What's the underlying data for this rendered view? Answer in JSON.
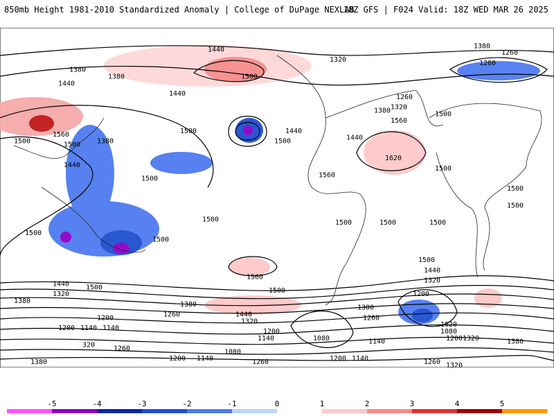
{
  "header": {
    "left_title": "850mb Height 1981-2010 Standardized Anomaly | College of DuPage NEXLAB",
    "right_title": "18Z GFS | F024 Valid: 18Z WED MAR 26 2025"
  },
  "contour_labels": [
    {
      "text": "1440",
      "fx": 0.39,
      "fy": 0.07
    },
    {
      "text": "1380",
      "fx": 0.87,
      "fy": 0.06
    },
    {
      "text": "1260",
      "fx": 0.92,
      "fy": 0.08
    },
    {
      "text": "1200",
      "fx": 0.88,
      "fy": 0.11
    },
    {
      "text": "1320",
      "fx": 0.61,
      "fy": 0.1
    },
    {
      "text": "1380",
      "fx": 0.14,
      "fy": 0.13
    },
    {
      "text": "1380",
      "fx": 0.21,
      "fy": 0.15
    },
    {
      "text": "1440",
      "fx": 0.12,
      "fy": 0.17
    },
    {
      "text": "1500",
      "fx": 0.45,
      "fy": 0.15
    },
    {
      "text": "1440",
      "fx": 0.32,
      "fy": 0.2
    },
    {
      "text": "1260",
      "fx": 0.73,
      "fy": 0.21
    },
    {
      "text": "1380",
      "fx": 0.69,
      "fy": 0.25
    },
    {
      "text": "1320",
      "fx": 0.72,
      "fy": 0.24
    },
    {
      "text": "1500",
      "fx": 0.8,
      "fy": 0.26
    },
    {
      "text": "1560",
      "fx": 0.72,
      "fy": 0.28
    },
    {
      "text": "1500",
      "fx": 0.34,
      "fy": 0.31
    },
    {
      "text": "1440",
      "fx": 0.53,
      "fy": 0.31
    },
    {
      "text": "1500",
      "fx": 0.51,
      "fy": 0.34
    },
    {
      "text": "1440",
      "fx": 0.64,
      "fy": 0.33
    },
    {
      "text": "1560",
      "fx": 0.11,
      "fy": 0.32
    },
    {
      "text": "1500",
      "fx": 0.04,
      "fy": 0.34
    },
    {
      "text": "1500",
      "fx": 0.13,
      "fy": 0.35
    },
    {
      "text": "1380",
      "fx": 0.19,
      "fy": 0.34
    },
    {
      "text": "1440",
      "fx": 0.13,
      "fy": 0.41
    },
    {
      "text": "1620",
      "fx": 0.71,
      "fy": 0.39
    },
    {
      "text": "1500",
      "fx": 0.8,
      "fy": 0.42
    },
    {
      "text": "1500",
      "fx": 0.27,
      "fy": 0.45
    },
    {
      "text": "1560",
      "fx": 0.59,
      "fy": 0.44
    },
    {
      "text": "1500",
      "fx": 0.93,
      "fy": 0.48
    },
    {
      "text": "1500",
      "fx": 0.93,
      "fy": 0.53
    },
    {
      "text": "1500",
      "fx": 0.38,
      "fy": 0.57
    },
    {
      "text": "1500",
      "fx": 0.62,
      "fy": 0.58
    },
    {
      "text": "1500",
      "fx": 0.7,
      "fy": 0.58
    },
    {
      "text": "1500",
      "fx": 0.79,
      "fy": 0.58
    },
    {
      "text": "1500",
      "fx": 0.06,
      "fy": 0.61
    },
    {
      "text": "1500",
      "fx": 0.29,
      "fy": 0.63
    },
    {
      "text": "1500",
      "fx": 0.77,
      "fy": 0.69
    },
    {
      "text": "1440",
      "fx": 0.78,
      "fy": 0.72
    },
    {
      "text": "1560",
      "fx": 0.46,
      "fy": 0.74
    },
    {
      "text": "1320",
      "fx": 0.78,
      "fy": 0.75
    },
    {
      "text": "1440",
      "fx": 0.11,
      "fy": 0.76
    },
    {
      "text": "1500",
      "fx": 0.17,
      "fy": 0.77
    },
    {
      "text": "1500",
      "fx": 0.5,
      "fy": 0.78
    },
    {
      "text": "1320",
      "fx": 0.11,
      "fy": 0.79
    },
    {
      "text": "1380",
      "fx": 0.04,
      "fy": 0.81
    },
    {
      "text": "1200",
      "fx": 0.76,
      "fy": 0.79
    },
    {
      "text": "1380",
      "fx": 0.34,
      "fy": 0.82
    },
    {
      "text": "1380",
      "fx": 0.66,
      "fy": 0.83
    },
    {
      "text": "1260",
      "fx": 0.31,
      "fy": 0.85
    },
    {
      "text": "1440",
      "fx": 0.44,
      "fy": 0.85
    },
    {
      "text": "1200",
      "fx": 0.19,
      "fy": 0.86
    },
    {
      "text": "1260",
      "fx": 0.67,
      "fy": 0.86
    },
    {
      "text": "1320",
      "fx": 0.45,
      "fy": 0.87
    },
    {
      "text": "1020",
      "fx": 0.81,
      "fy": 0.88
    },
    {
      "text": "1140",
      "fx": 0.16,
      "fy": 0.89
    },
    {
      "text": "1140",
      "fx": 0.2,
      "fy": 0.89
    },
    {
      "text": "1200",
      "fx": 0.12,
      "fy": 0.89
    },
    {
      "text": "1200",
      "fx": 0.49,
      "fy": 0.9
    },
    {
      "text": "1080",
      "fx": 0.81,
      "fy": 0.9
    },
    {
      "text": "1140",
      "fx": 0.48,
      "fy": 0.92
    },
    {
      "text": "1080",
      "fx": 0.58,
      "fy": 0.92
    },
    {
      "text": "1200",
      "fx": 0.82,
      "fy": 0.92
    },
    {
      "text": "1320",
      "fx": 0.85,
      "fy": 0.92
    },
    {
      "text": "1380",
      "fx": 0.93,
      "fy": 0.93
    },
    {
      "text": "1140",
      "fx": 0.68,
      "fy": 0.93
    },
    {
      "text": "320",
      "fx": 0.16,
      "fy": 0.94
    },
    {
      "text": "1260",
      "fx": 0.22,
      "fy": 0.95
    },
    {
      "text": "1080",
      "fx": 0.42,
      "fy": 0.96
    },
    {
      "text": "1200",
      "fx": 0.32,
      "fy": 0.98
    },
    {
      "text": "1140",
      "fx": 0.37,
      "fy": 0.98
    },
    {
      "text": "1200",
      "fx": 0.61,
      "fy": 0.98
    },
    {
      "text": "1140",
      "fx": 0.65,
      "fy": 0.98
    },
    {
      "text": "1260",
      "fx": 0.47,
      "fy": 0.99
    },
    {
      "text": "1260",
      "fx": 0.78,
      "fy": 0.99
    },
    {
      "text": "1380",
      "fx": 0.07,
      "fy": 0.99
    },
    {
      "text": "1320",
      "fx": 0.82,
      "fy": 1.0
    }
  ],
  "colorbar": {
    "labels": [
      "-5",
      "-4",
      "-3",
      "-2",
      "-1",
      "0",
      "1",
      "2",
      "3",
      "4",
      "5"
    ],
    "colors": [
      "#ff55ff",
      "#8e00c8",
      "#0a2a9c",
      "#1e4fd0",
      "#4f7bf0",
      "#bcd6f8",
      "#ffffff",
      "#ffc8c8",
      "#f58c8c",
      "#e03030",
      "#a00000",
      "#ff9a00"
    ]
  }
}
